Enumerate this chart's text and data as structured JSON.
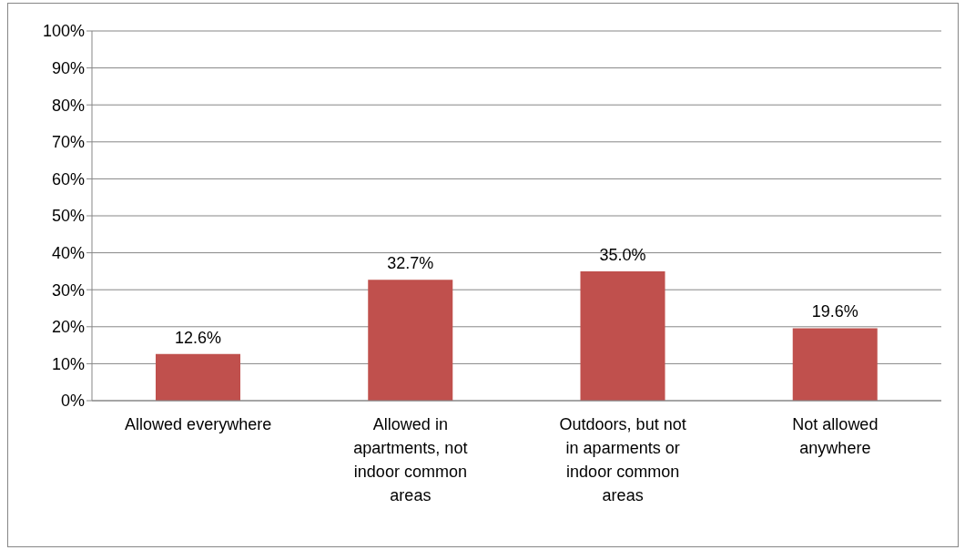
{
  "chart_data": {
    "type": "bar",
    "categories": [
      "Allowed everywhere",
      "Allowed in apartments, not indoor common areas",
      "Outdoors, but not in aparments or indoor common areas",
      "Not allowed anywhere"
    ],
    "values": [
      12.6,
      32.7,
      35.0,
      19.6
    ],
    "value_labels": [
      "12.6%",
      "32.7%",
      "35.0%",
      "19.6%"
    ],
    "color": "#c0504d",
    "ylim": [
      0,
      100
    ],
    "yticks": [
      {
        "value": 0,
        "label": "0%"
      },
      {
        "value": 10,
        "label": "10%"
      },
      {
        "value": 20,
        "label": "20%"
      },
      {
        "value": 30,
        "label": "30%"
      },
      {
        "value": 40,
        "label": "40%"
      },
      {
        "value": 50,
        "label": "50%"
      },
      {
        "value": 60,
        "label": "60%"
      },
      {
        "value": 70,
        "label": "70%"
      },
      {
        "value": 80,
        "label": "80%"
      },
      {
        "value": 90,
        "label": "90%"
      },
      {
        "value": 100,
        "label": "100%"
      }
    ],
    "grid": "y",
    "legend": false
  }
}
